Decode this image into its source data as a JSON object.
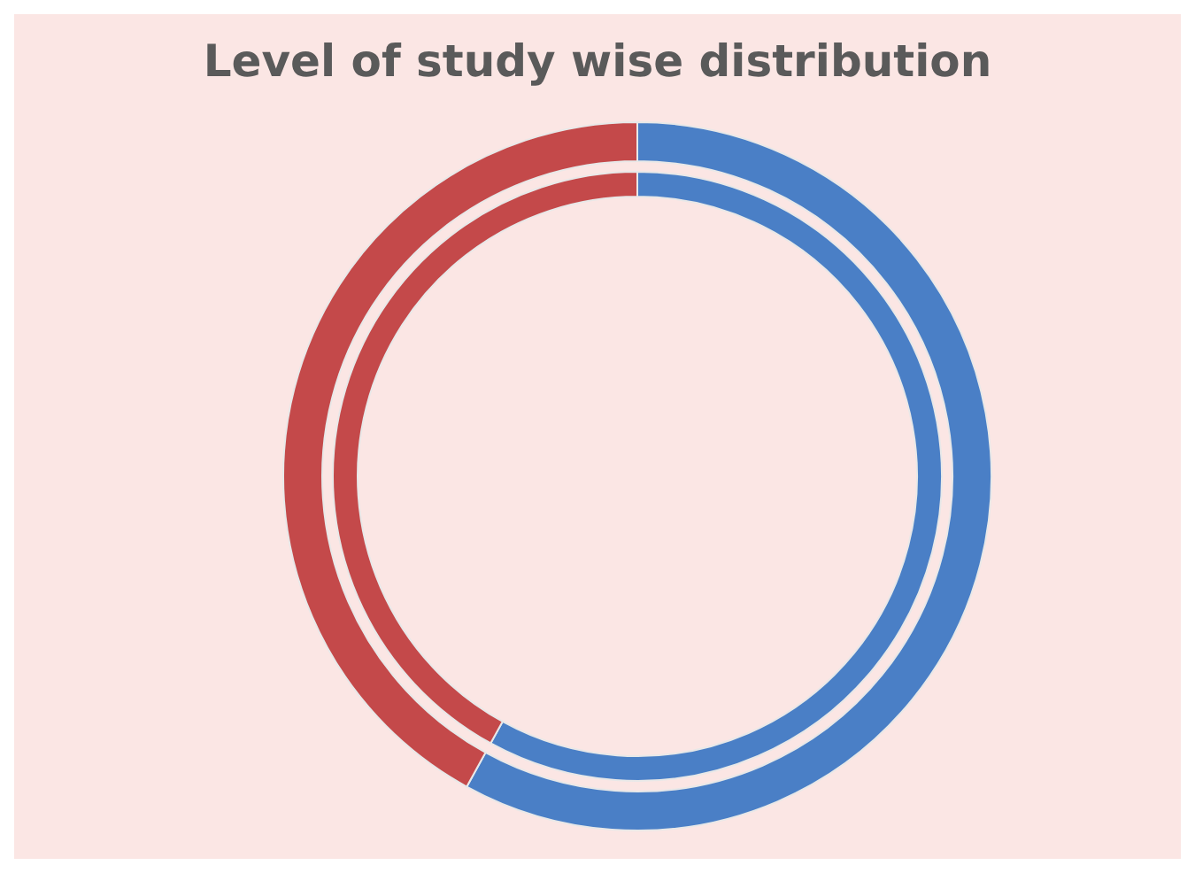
{
  "chart_data": {
    "type": "donut",
    "title": "Level of study wise distribution",
    "categories": [
      null,
      null
    ],
    "colors": [
      "#4a7fc6",
      "#c4494a"
    ],
    "series": [
      {
        "values": [
          58,
          42
        ]
      },
      {
        "values": [
          58,
          42
        ]
      }
    ]
  }
}
